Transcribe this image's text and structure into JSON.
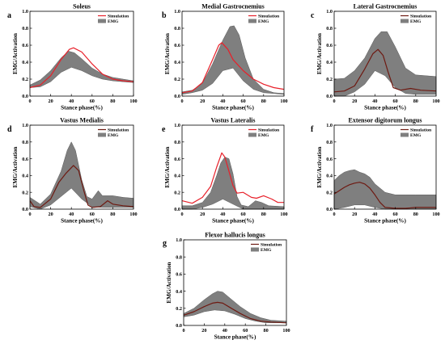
{
  "colors": {
    "emg": "#7f7f7f",
    "emg_edge": "#5a5a5a",
    "sim_red": "#e8202a",
    "sim_dark": "#6e1a12",
    "axis": "#000000"
  },
  "legend": {
    "sim": "Simulation",
    "emg": "EMG"
  },
  "chart_data": [
    {
      "type": "area",
      "letter": "a",
      "title": "Soleus",
      "xlabel": "Stance phase(%)",
      "ylabel": "EMG/Activation",
      "xlim": [
        0,
        100
      ],
      "ylim": [
        0,
        1.0
      ],
      "xticks": [
        "0",
        "20",
        "40",
        "60",
        "80",
        "100"
      ],
      "yticks": [
        "0.0",
        "0.2",
        "0.4",
        "0.6",
        "0.8",
        "1.0"
      ],
      "legend_position": "top-right",
      "sim_color": "red",
      "emg_upper": [
        [
          0,
          0.13
        ],
        [
          10,
          0.19
        ],
        [
          20,
          0.3
        ],
        [
          30,
          0.45
        ],
        [
          37,
          0.53
        ],
        [
          43,
          0.51
        ],
        [
          50,
          0.44
        ],
        [
          60,
          0.33
        ],
        [
          70,
          0.26
        ],
        [
          80,
          0.22
        ],
        [
          90,
          0.2
        ],
        [
          100,
          0.18
        ]
      ],
      "emg_lower": [
        [
          0,
          0.1
        ],
        [
          10,
          0.11
        ],
        [
          20,
          0.17
        ],
        [
          30,
          0.28
        ],
        [
          40,
          0.34
        ],
        [
          50,
          0.3
        ],
        [
          60,
          0.24
        ],
        [
          70,
          0.2
        ],
        [
          80,
          0.18
        ],
        [
          90,
          0.17
        ],
        [
          100,
          0.16
        ]
      ],
      "simulation": [
        [
          0,
          0.1
        ],
        [
          10,
          0.13
        ],
        [
          20,
          0.24
        ],
        [
          30,
          0.43
        ],
        [
          38,
          0.55
        ],
        [
          42,
          0.57
        ],
        [
          50,
          0.52
        ],
        [
          60,
          0.38
        ],
        [
          70,
          0.26
        ],
        [
          80,
          0.2
        ],
        [
          90,
          0.18
        ],
        [
          100,
          0.17
        ]
      ]
    },
    {
      "type": "area",
      "letter": "b",
      "title": "Medial Gastrocnemius",
      "xlabel": "Stance phase(%)",
      "ylabel": "EMG/Activation",
      "xlim": [
        0,
        100
      ],
      "ylim": [
        0,
        1.0
      ],
      "xticks": [
        "0",
        "20",
        "40",
        "60",
        "80",
        "100"
      ],
      "yticks": [
        "0.0",
        "0.2",
        "0.4",
        "0.6",
        "0.8",
        "1.0"
      ],
      "legend_position": "top-right",
      "sim_color": "red",
      "emg_upper": [
        [
          0,
          0.05
        ],
        [
          10,
          0.07
        ],
        [
          20,
          0.15
        ],
        [
          30,
          0.38
        ],
        [
          40,
          0.66
        ],
        [
          47,
          0.82
        ],
        [
          51,
          0.83
        ],
        [
          56,
          0.72
        ],
        [
          62,
          0.45
        ],
        [
          70,
          0.2
        ],
        [
          80,
          0.08
        ],
        [
          90,
          0.04
        ],
        [
          100,
          0.03
        ]
      ],
      "emg_lower": [
        [
          0,
          0.02
        ],
        [
          10,
          0.04
        ],
        [
          20,
          0.07
        ],
        [
          30,
          0.15
        ],
        [
          40,
          0.3
        ],
        [
          50,
          0.33
        ],
        [
          60,
          0.18
        ],
        [
          70,
          0.08
        ],
        [
          80,
          0.04
        ],
        [
          90,
          0.03
        ],
        [
          100,
          0.02
        ]
      ],
      "simulation": [
        [
          0,
          0.04
        ],
        [
          10,
          0.06
        ],
        [
          20,
          0.16
        ],
        [
          30,
          0.43
        ],
        [
          36,
          0.6
        ],
        [
          39,
          0.63
        ],
        [
          45,
          0.55
        ],
        [
          50,
          0.43
        ],
        [
          60,
          0.3
        ],
        [
          70,
          0.2
        ],
        [
          80,
          0.14
        ],
        [
          90,
          0.1
        ],
        [
          100,
          0.08
        ]
      ]
    },
    {
      "type": "area",
      "letter": "c",
      "title": "Lateral Gastrocnemius",
      "xlabel": "Stance phase(%)",
      "ylabel": "EMG/Activation",
      "xlim": [
        0,
        100
      ],
      "ylim": [
        0,
        1.0
      ],
      "xticks": [
        "0",
        "20",
        "40",
        "60",
        "80",
        "100"
      ],
      "yticks": [
        "0.0",
        "0.2",
        "0.4",
        "0.6",
        "0.8",
        "1.0"
      ],
      "legend_position": "top-right",
      "sim_color": "dark",
      "emg_upper": [
        [
          0,
          0.2
        ],
        [
          10,
          0.21
        ],
        [
          20,
          0.3
        ],
        [
          30,
          0.45
        ],
        [
          40,
          0.68
        ],
        [
          46,
          0.76
        ],
        [
          52,
          0.76
        ],
        [
          60,
          0.58
        ],
        [
          70,
          0.33
        ],
        [
          80,
          0.25
        ],
        [
          90,
          0.24
        ],
        [
          100,
          0.23
        ]
      ],
      "emg_lower": [
        [
          0,
          0.0
        ],
        [
          10,
          0.0
        ],
        [
          20,
          0.05
        ],
        [
          30,
          0.14
        ],
        [
          40,
          0.3
        ],
        [
          50,
          0.24
        ],
        [
          60,
          0.1
        ],
        [
          70,
          0.03
        ],
        [
          80,
          0.02
        ],
        [
          90,
          0.02
        ],
        [
          100,
          0.02
        ]
      ],
      "simulation": [
        [
          0,
          0.05
        ],
        [
          10,
          0.06
        ],
        [
          20,
          0.12
        ],
        [
          30,
          0.32
        ],
        [
          38,
          0.5
        ],
        [
          43,
          0.55
        ],
        [
          48,
          0.48
        ],
        [
          53,
          0.28
        ],
        [
          58,
          0.1
        ],
        [
          65,
          0.07
        ],
        [
          75,
          0.09
        ],
        [
          85,
          0.07
        ],
        [
          100,
          0.06
        ]
      ]
    },
    {
      "type": "area",
      "letter": "d",
      "title": "Vastus Medialis",
      "xlabel": "Stance phase(%)",
      "ylabel": "EMG/Activation",
      "xlim": [
        0,
        100
      ],
      "ylim": [
        0,
        1.0
      ],
      "xticks": [
        "0",
        "20",
        "40",
        "60",
        "80",
        "100"
      ],
      "yticks": [
        "0.0",
        "0.2",
        "0.4",
        "0.6",
        "0.8",
        "1.0"
      ],
      "legend_position": "top-right",
      "sim_color": "dark",
      "emg_upper": [
        [
          0,
          0.14
        ],
        [
          5,
          0.1
        ],
        [
          10,
          0.06
        ],
        [
          20,
          0.18
        ],
        [
          30,
          0.45
        ],
        [
          36,
          0.7
        ],
        [
          40,
          0.8
        ],
        [
          44,
          0.7
        ],
        [
          50,
          0.35
        ],
        [
          55,
          0.15
        ],
        [
          60,
          0.12
        ],
        [
          66,
          0.22
        ],
        [
          70,
          0.16
        ],
        [
          80,
          0.16
        ],
        [
          90,
          0.14
        ],
        [
          100,
          0.13
        ]
      ],
      "emg_lower": [
        [
          0,
          0.03
        ],
        [
          10,
          0.0
        ],
        [
          20,
          0.05
        ],
        [
          30,
          0.15
        ],
        [
          40,
          0.25
        ],
        [
          50,
          0.12
        ],
        [
          60,
          0.03
        ],
        [
          70,
          0.02
        ],
        [
          80,
          0.02
        ],
        [
          90,
          0.02
        ],
        [
          100,
          0.02
        ]
      ],
      "simulation": [
        [
          0,
          0.1
        ],
        [
          4,
          0.03
        ],
        [
          10,
          0.02
        ],
        [
          20,
          0.12
        ],
        [
          28,
          0.32
        ],
        [
          35,
          0.43
        ],
        [
          42,
          0.52
        ],
        [
          47,
          0.46
        ],
        [
          52,
          0.22
        ],
        [
          56,
          0.05
        ],
        [
          60,
          0.02
        ],
        [
          68,
          0.03
        ],
        [
          75,
          0.1
        ],
        [
          80,
          0.06
        ],
        [
          90,
          0.04
        ],
        [
          100,
          0.03
        ]
      ]
    },
    {
      "type": "area",
      "letter": "e",
      "title": "Vastus Lateralis",
      "xlabel": "Stance phase(%)",
      "ylabel": "EMG/Activation",
      "xlim": [
        0,
        100
      ],
      "ylim": [
        0,
        1.0
      ],
      "xticks": [
        "0",
        "20",
        "40",
        "60",
        "80",
        "100"
      ],
      "yticks": [
        "0.0",
        "0.2",
        "0.4",
        "0.6",
        "0.8",
        "1.0"
      ],
      "legend_position": "top-right",
      "sim_color": "red",
      "emg_upper": [
        [
          0,
          0.04
        ],
        [
          10,
          0.04
        ],
        [
          20,
          0.08
        ],
        [
          28,
          0.2
        ],
        [
          34,
          0.4
        ],
        [
          38,
          0.55
        ],
        [
          42,
          0.62
        ],
        [
          46,
          0.6
        ],
        [
          50,
          0.42
        ],
        [
          54,
          0.15
        ],
        [
          58,
          0.05
        ],
        [
          65,
          0.03
        ],
        [
          72,
          0.1
        ],
        [
          78,
          0.08
        ],
        [
          85,
          0.04
        ],
        [
          100,
          0.03
        ]
      ],
      "emg_lower": [
        [
          0,
          0.0
        ],
        [
          10,
          0.0
        ],
        [
          20,
          0.02
        ],
        [
          30,
          0.06
        ],
        [
          40,
          0.12
        ],
        [
          50,
          0.06
        ],
        [
          60,
          0.0
        ],
        [
          70,
          0.0
        ],
        [
          80,
          0.0
        ],
        [
          90,
          0.0
        ],
        [
          100,
          0.0
        ]
      ],
      "simulation": [
        [
          0,
          0.1
        ],
        [
          10,
          0.07
        ],
        [
          20,
          0.14
        ],
        [
          28,
          0.27
        ],
        [
          34,
          0.5
        ],
        [
          39,
          0.67
        ],
        [
          42,
          0.62
        ],
        [
          46,
          0.45
        ],
        [
          50,
          0.28
        ],
        [
          54,
          0.19
        ],
        [
          60,
          0.2
        ],
        [
          68,
          0.14
        ],
        [
          73,
          0.13
        ],
        [
          80,
          0.16
        ],
        [
          88,
          0.12
        ],
        [
          94,
          0.08
        ],
        [
          100,
          0.08
        ]
      ]
    },
    {
      "type": "area",
      "letter": "f",
      "title": "Extensor digitorum longus",
      "xlabel": "Stance phase(%)",
      "ylabel": "EMG/Activation",
      "xlim": [
        0,
        100
      ],
      "ylim": [
        0,
        1.0
      ],
      "xticks": [
        "0",
        "20",
        "40",
        "60",
        "80",
        "100"
      ],
      "yticks": [
        "0.0",
        "0.2",
        "0.4",
        "0.6",
        "0.8",
        "1.0"
      ],
      "legend_position": "top-right",
      "sim_color": "dark",
      "emg_upper": [
        [
          0,
          0.34
        ],
        [
          5,
          0.4
        ],
        [
          10,
          0.44
        ],
        [
          15,
          0.46
        ],
        [
          20,
          0.47
        ],
        [
          25,
          0.44
        ],
        [
          30,
          0.42
        ],
        [
          35,
          0.38
        ],
        [
          40,
          0.3
        ],
        [
          50,
          0.2
        ],
        [
          60,
          0.17
        ],
        [
          70,
          0.17
        ],
        [
          80,
          0.17
        ],
        [
          90,
          0.17
        ],
        [
          100,
          0.17
        ]
      ],
      "emg_lower": [
        [
          0,
          0.0
        ],
        [
          10,
          0.02
        ],
        [
          20,
          0.05
        ],
        [
          30,
          0.05
        ],
        [
          40,
          0.02
        ],
        [
          50,
          0.0
        ],
        [
          60,
          0.0
        ],
        [
          70,
          0.0
        ],
        [
          80,
          0.0
        ],
        [
          90,
          0.0
        ],
        [
          100,
          0.0
        ]
      ],
      "simulation": [
        [
          0,
          0.18
        ],
        [
          5,
          0.22
        ],
        [
          10,
          0.26
        ],
        [
          15,
          0.29
        ],
        [
          20,
          0.31
        ],
        [
          25,
          0.32
        ],
        [
          30,
          0.3
        ],
        [
          35,
          0.25
        ],
        [
          40,
          0.17
        ],
        [
          45,
          0.08
        ],
        [
          50,
          0.02
        ],
        [
          60,
          0.01
        ],
        [
          70,
          0.01
        ],
        [
          80,
          0.02
        ],
        [
          90,
          0.02
        ],
        [
          100,
          0.02
        ]
      ]
    },
    {
      "type": "area",
      "letter": "g",
      "title": "Flexor hallucis longus",
      "xlabel": "Stance phase(%)",
      "ylabel": "EMG/Activation",
      "xlim": [
        0,
        100
      ],
      "ylim": [
        0,
        1.0
      ],
      "xticks": [
        "0",
        "20",
        "40",
        "60",
        "80",
        "100"
      ],
      "yticks": [
        "0.0",
        "0.2",
        "0.4",
        "0.6",
        "0.8",
        "1.0"
      ],
      "legend_position": "top-right",
      "sim_color": "dark",
      "emg_upper": [
        [
          0,
          0.14
        ],
        [
          10,
          0.2
        ],
        [
          20,
          0.3
        ],
        [
          28,
          0.37
        ],
        [
          33,
          0.4
        ],
        [
          38,
          0.39
        ],
        [
          45,
          0.32
        ],
        [
          55,
          0.22
        ],
        [
          65,
          0.14
        ],
        [
          75,
          0.09
        ],
        [
          85,
          0.06
        ],
        [
          100,
          0.05
        ]
      ],
      "emg_lower": [
        [
          0,
          0.1
        ],
        [
          10,
          0.12
        ],
        [
          20,
          0.16
        ],
        [
          30,
          0.18
        ],
        [
          40,
          0.17
        ],
        [
          50,
          0.13
        ],
        [
          60,
          0.08
        ],
        [
          70,
          0.05
        ],
        [
          80,
          0.03
        ],
        [
          90,
          0.03
        ],
        [
          100,
          0.03
        ]
      ],
      "simulation": [
        [
          0,
          0.12
        ],
        [
          10,
          0.16
        ],
        [
          20,
          0.22
        ],
        [
          28,
          0.26
        ],
        [
          33,
          0.27
        ],
        [
          38,
          0.26
        ],
        [
          45,
          0.21
        ],
        [
          55,
          0.14
        ],
        [
          65,
          0.08
        ],
        [
          75,
          0.05
        ],
        [
          85,
          0.04
        ],
        [
          100,
          0.03
        ]
      ]
    }
  ]
}
